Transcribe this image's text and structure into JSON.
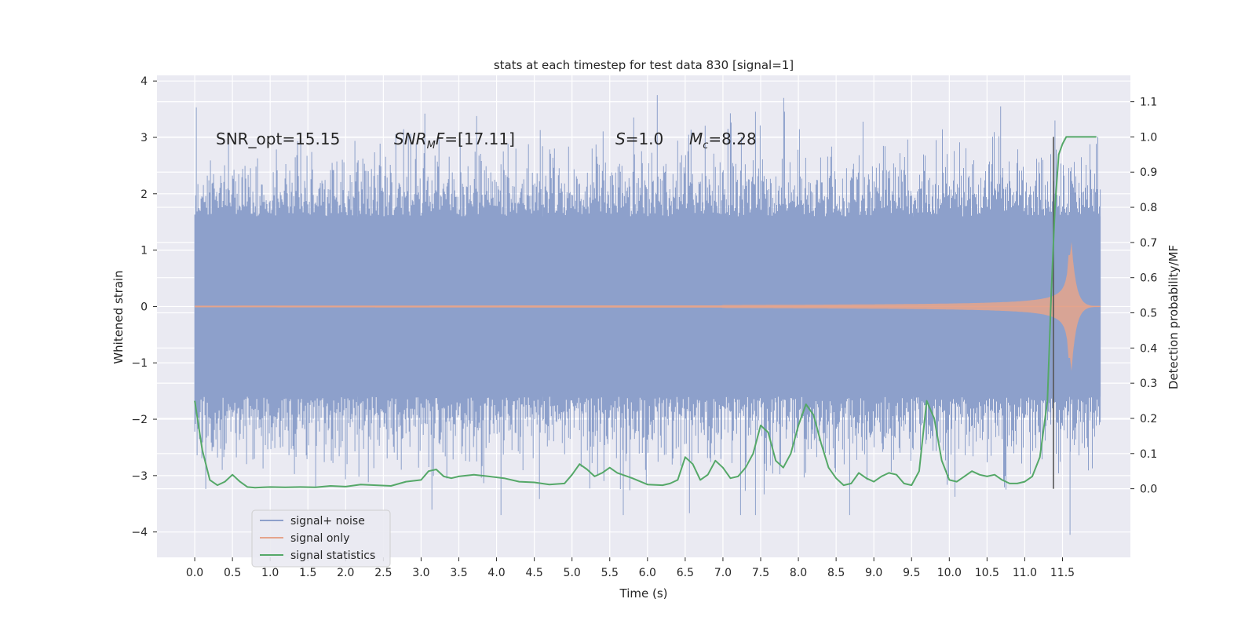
{
  "chart_data": {
    "type": "line",
    "title": "stats at each timestep for test data 830 [signal=1]",
    "xlabel": "Time (s)",
    "ylabel": "Whitened strain",
    "y2label": "Detection probability/MF",
    "xlim": [
      -0.5,
      12.4
    ],
    "ylim": [
      -4.45,
      4.1
    ],
    "y2lim": [
      -0.195,
      1.175
    ],
    "x_ticks": [
      "0.0",
      "0.5",
      "1.0",
      "1.5",
      "2.0",
      "2.5",
      "3.0",
      "3.5",
      "4.0",
      "4.5",
      "5.0",
      "5.5",
      "6.0",
      "6.5",
      "7.0",
      "7.5",
      "8.0",
      "8.5",
      "9.0",
      "9.5",
      "10.0",
      "10.5",
      "11.0",
      "11.5"
    ],
    "y_ticks": [
      "−4",
      "−3",
      "−2",
      "−1",
      "0",
      "1",
      "2",
      "3",
      "4"
    ],
    "y2_ticks": [
      "0.0",
      "0.1",
      "0.2",
      "0.3",
      "0.4",
      "0.5",
      "0.6",
      "0.7",
      "0.8",
      "0.9",
      "1.0",
      "1.1"
    ],
    "grid": true,
    "legend_position": "lower-left",
    "annotations": {
      "snr_opt": "SNR_opt=15.15",
      "snr_mf": "SNR_MF=[17.11]",
      "s": "S=1.0",
      "mc": "Mc=8.28"
    },
    "marker_line_x": 11.38,
    "series": [
      {
        "name": "signal+ noise",
        "color": "#8da0cb",
        "axis": "left",
        "x_range": [
          0.0,
          12.0
        ],
        "envelope_abs": 1.6,
        "peak_abs": 3.7,
        "extremes": [
          {
            "x": 6.13,
            "y": 3.75
          },
          {
            "x": 10.68,
            "y": 3.55
          },
          {
            "x": 11.4,
            "y": 3.3
          },
          {
            "x": 5.68,
            "y": -3.7
          },
          {
            "x": 11.6,
            "y": -4.05
          }
        ]
      },
      {
        "name": "signal only",
        "color": "#e5a48c",
        "axis": "left",
        "x_range": [
          0.0,
          12.0
        ],
        "chirp_peak_x": 11.6,
        "chirp_peak_amp": 1.6
      },
      {
        "name": "signal statistics",
        "color": "#55a868",
        "axis": "right",
        "x": [
          0.0,
          0.1,
          0.2,
          0.3,
          0.4,
          0.5,
          0.6,
          0.7,
          0.8,
          0.9,
          1.0,
          1.2,
          1.4,
          1.6,
          1.8,
          2.0,
          2.2,
          2.4,
          2.6,
          2.8,
          3.0,
          3.1,
          3.2,
          3.3,
          3.4,
          3.5,
          3.7,
          3.9,
          4.1,
          4.3,
          4.5,
          4.7,
          4.9,
          5.0,
          5.1,
          5.2,
          5.3,
          5.4,
          5.5,
          5.6,
          5.8,
          6.0,
          6.2,
          6.3,
          6.4,
          6.5,
          6.6,
          6.7,
          6.8,
          6.9,
          7.0,
          7.1,
          7.2,
          7.3,
          7.4,
          7.5,
          7.6,
          7.7,
          7.8,
          7.9,
          8.0,
          8.1,
          8.2,
          8.3,
          8.4,
          8.5,
          8.6,
          8.7,
          8.8,
          8.9,
          9.0,
          9.1,
          9.2,
          9.3,
          9.4,
          9.5,
          9.6,
          9.7,
          9.8,
          9.9,
          10.0,
          10.1,
          10.2,
          10.3,
          10.4,
          10.5,
          10.6,
          10.7,
          10.8,
          10.9,
          11.0,
          11.1,
          11.2,
          11.3,
          11.35,
          11.4,
          11.45,
          11.5,
          11.55,
          11.6,
          11.7,
          11.8,
          11.95
        ],
        "values": [
          0.25,
          0.11,
          0.025,
          0.01,
          0.02,
          0.04,
          0.02,
          0.005,
          0.003,
          0.004,
          0.005,
          0.004,
          0.005,
          0.004,
          0.008,
          0.006,
          0.012,
          0.01,
          0.008,
          0.02,
          0.025,
          0.05,
          0.055,
          0.035,
          0.03,
          0.035,
          0.04,
          0.035,
          0.03,
          0.02,
          0.018,
          0.012,
          0.015,
          0.04,
          0.07,
          0.055,
          0.035,
          0.045,
          0.06,
          0.045,
          0.03,
          0.012,
          0.01,
          0.015,
          0.025,
          0.09,
          0.07,
          0.025,
          0.04,
          0.08,
          0.06,
          0.03,
          0.035,
          0.06,
          0.1,
          0.18,
          0.16,
          0.08,
          0.06,
          0.1,
          0.18,
          0.24,
          0.21,
          0.13,
          0.06,
          0.03,
          0.01,
          0.015,
          0.045,
          0.03,
          0.02,
          0.035,
          0.045,
          0.04,
          0.015,
          0.01,
          0.05,
          0.25,
          0.2,
          0.08,
          0.025,
          0.02,
          0.035,
          0.05,
          0.04,
          0.035,
          0.04,
          0.025,
          0.015,
          0.015,
          0.02,
          0.035,
          0.09,
          0.25,
          0.55,
          0.8,
          0.95,
          0.98,
          1.0,
          1.0,
          1.0,
          1.0,
          1.0
        ]
      }
    ]
  }
}
